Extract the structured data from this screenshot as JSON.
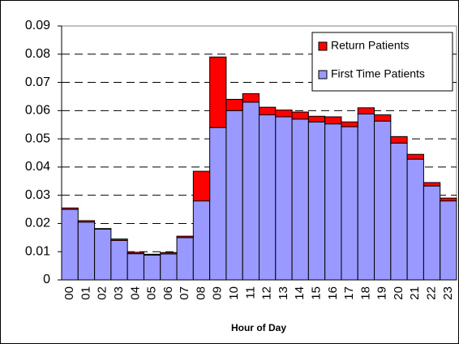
{
  "chart_data": {
    "type": "stacked_bar",
    "x_label": "Hour of Day",
    "categories": [
      "00",
      "01",
      "02",
      "03",
      "04",
      "05",
      "06",
      "07",
      "08",
      "09",
      "10",
      "11",
      "12",
      "13",
      "14",
      "15",
      "16",
      "17",
      "18",
      "19",
      "20",
      "21",
      "22",
      "23"
    ],
    "series": [
      {
        "name": "First Time Patients",
        "color": "#9999ff",
        "values": [
          0.025,
          0.0205,
          0.018,
          0.014,
          0.0093,
          0.0088,
          0.0092,
          0.015,
          0.028,
          0.054,
          0.06,
          0.063,
          0.0585,
          0.0578,
          0.057,
          0.056,
          0.0553,
          0.0543,
          0.0588,
          0.0563,
          0.0485,
          0.0428,
          0.0333,
          0.028
        ]
      },
      {
        "name": "Return Patients",
        "color": "#ff0000",
        "values": [
          0.0005,
          0.0005,
          0.0002,
          0.0005,
          0.0005,
          0.0003,
          0.0005,
          0.0005,
          0.0105,
          0.025,
          0.004,
          0.003,
          0.0027,
          0.0024,
          0.0025,
          0.002,
          0.0025,
          0.0017,
          0.0022,
          0.0022,
          0.0023,
          0.0017,
          0.0012,
          0.001
        ]
      }
    ],
    "ylim": [
      0,
      0.09
    ],
    "yticks": [
      0,
      0.01,
      0.02,
      0.03,
      0.04,
      0.05,
      0.06,
      0.07,
      0.08,
      0.09
    ],
    "grid": true,
    "legend": "top-right"
  }
}
